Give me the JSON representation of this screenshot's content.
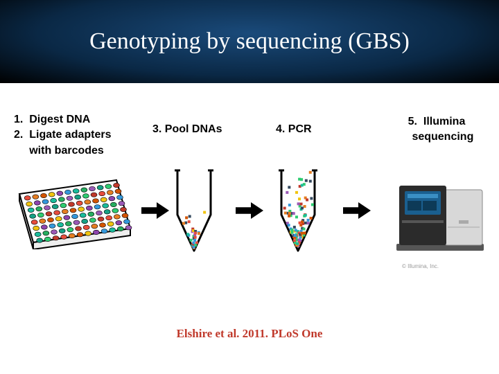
{
  "title": "Genotyping by sequencing (GBS)",
  "steps": {
    "s1": "1.  Digest DNA\n2.  Ligate adapters\n     with barcodes",
    "s3": "3. Pool DNAs",
    "s4": "4. PCR",
    "s5": "5.  Illumina\n    sequencing"
  },
  "citation": "Elshire et al. 2011. PLoS One",
  "attribution": "© Illumina, Inc.",
  "colors": {
    "header_gradient_center": "#1a4a7a",
    "header_gradient_mid": "#0a2845",
    "header_gradient_edge": "#000000",
    "title_text": "#ffffff",
    "step_text": "#000000",
    "citation_text": "#c0392b",
    "attribution_text": "#999999",
    "arrow_fill": "#000000",
    "plate_outline": "#000000",
    "tube_outline": "#000000",
    "sequencer_dark": "#2b2b2b",
    "sequencer_light": "#d8d8d8",
    "sequencer_screen": "#1a5f8f",
    "well_palette": [
      "#e74c3c",
      "#3498db",
      "#2ecc71",
      "#f1c40f",
      "#9b59b6",
      "#e67e22",
      "#1abc9c",
      "#c0392b",
      "#8e44ad",
      "#16a085",
      "#d35400",
      "#27ae60"
    ],
    "confetti_palette": [
      "#e74c3c",
      "#3498db",
      "#2ecc71",
      "#f1c40f",
      "#9b59b6",
      "#e67e22",
      "#1abc9c",
      "#c0392b",
      "#34495e",
      "#d35400"
    ]
  },
  "plate": {
    "rows": 8,
    "cols": 12,
    "well_r": 4.5
  },
  "arrow": {
    "w": 40,
    "h": 24
  },
  "pool_confetti_count": 30,
  "pcr_confetti_count": 90,
  "typography": {
    "title_fontsize": 34,
    "step_fontsize": 16,
    "citation_fontsize": 17,
    "attribution_fontsize": 8
  },
  "type": "infographic"
}
